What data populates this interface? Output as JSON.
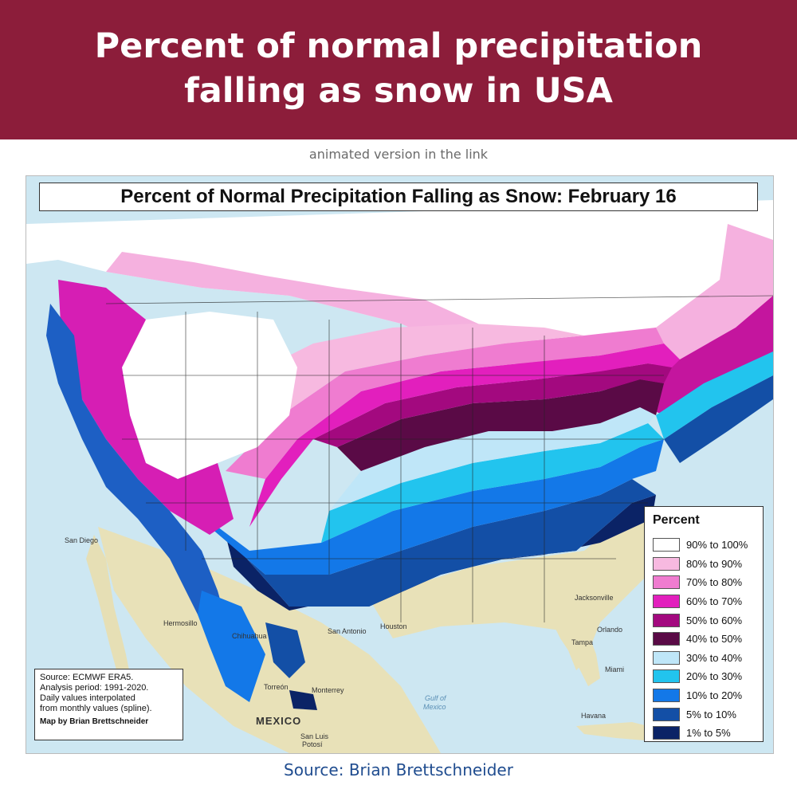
{
  "header": {
    "title_line1": "Percent of normal precipitation",
    "title_line2": "falling as snow in USA",
    "subnote": "animated version in the link"
  },
  "map": {
    "title": "Percent of Normal Precipitation Falling as Snow:  February 16",
    "legend": {
      "title": "Percent",
      "items": [
        {
          "label": "90% to 100%",
          "color": "#ffffff"
        },
        {
          "label": "80% to 90%",
          "color": "#f7b9e0"
        },
        {
          "label": "70% to 80%",
          "color": "#ef7cd0"
        },
        {
          "label": "60% to 70%",
          "color": "#e21fbd"
        },
        {
          "label": "50% to 60%",
          "color": "#a3097f"
        },
        {
          "label": "40% to 50%",
          "color": "#5a0a46"
        },
        {
          "label": "30% to 40%",
          "color": "#bfe6f8"
        },
        {
          "label": "20% to 30%",
          "color": "#22c4ee"
        },
        {
          "label": "10% to 20%",
          "color": "#1378e8"
        },
        {
          "label": "5% to 10%",
          "color": "#134fa6"
        },
        {
          "label": "1% to 5%",
          "color": "#0b2366"
        }
      ]
    },
    "credits": {
      "source": "Source: ECMWF ERA5.",
      "period": "Analysis period: 1991-2020.",
      "method_1": "Daily values interpolated",
      "method_2": "from monthly values (spline).",
      "author": "Map by Brian Brettschneider"
    },
    "places": {
      "mexico": "MEXICO",
      "gulf_1": "Gulf of",
      "gulf_2": "Mexico",
      "san_antonio": "San Antonio",
      "houston": "Houston",
      "monterrey": "Monterrey",
      "torreon": "Torreón",
      "chihuahua": "Chihuahua",
      "hermosillo": "Hermosillo",
      "san_diego": "San Diego",
      "san_luis_1": "San Luis",
      "san_luis_2": "Potosí",
      "jacksonville": "Jacksonville",
      "tampa": "Tampa",
      "miami": "Miami",
      "havana": "Havana",
      "orlando": "Orlando"
    }
  },
  "footer": {
    "source": "Source: Brian Brettschneider"
  }
}
